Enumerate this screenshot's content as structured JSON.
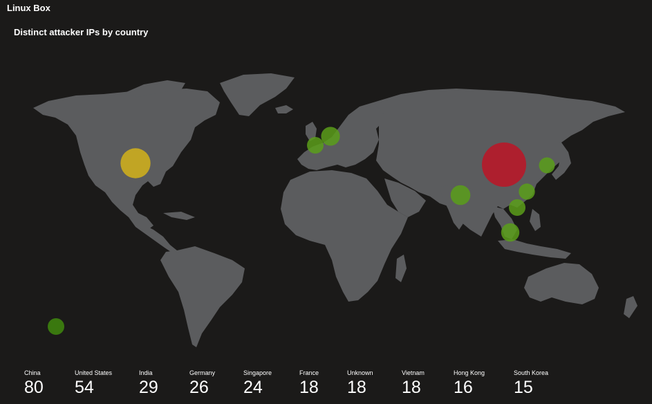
{
  "header": {
    "app_title": "Linux Box"
  },
  "panel": {
    "title": "Distinct attacker IPs by country"
  },
  "colors": {
    "background": "#1b1a19",
    "land": "#5b5c5e",
    "high": "#b31b2b",
    "medium": "#d4b21a",
    "low": "#5a9e1a",
    "lowest": "#3f8a0e"
  },
  "chart_data": {
    "type": "map",
    "metric": "Distinct attacker IPs",
    "points": [
      {
        "country": "China",
        "value": 80,
        "level": "high"
      },
      {
        "country": "United States",
        "value": 54,
        "level": "medium"
      },
      {
        "country": "India",
        "value": 29,
        "level": "low"
      },
      {
        "country": "Germany",
        "value": 26,
        "level": "low"
      },
      {
        "country": "Singapore",
        "value": 24,
        "level": "low"
      },
      {
        "country": "France",
        "value": 18,
        "level": "low"
      },
      {
        "country": "Unknown",
        "value": 18,
        "level": "lowest"
      },
      {
        "country": "Vietnam",
        "value": 18,
        "level": "low"
      },
      {
        "country": "Hong Kong",
        "value": 16,
        "level": "low"
      },
      {
        "country": "South Korea",
        "value": 15,
        "level": "low"
      }
    ]
  },
  "tiles": [
    {
      "label": "China",
      "value": "80"
    },
    {
      "label": "United States",
      "value": "54"
    },
    {
      "label": "India",
      "value": "29"
    },
    {
      "label": "Germany",
      "value": "26"
    },
    {
      "label": "Singapore",
      "value": "24"
    },
    {
      "label": "France",
      "value": "18"
    },
    {
      "label": "Unknown",
      "value": "18"
    },
    {
      "label": "Vietnam",
      "value": "18"
    },
    {
      "label": "Hong Kong",
      "value": "16"
    },
    {
      "label": "South Korea",
      "value": "15"
    }
  ]
}
